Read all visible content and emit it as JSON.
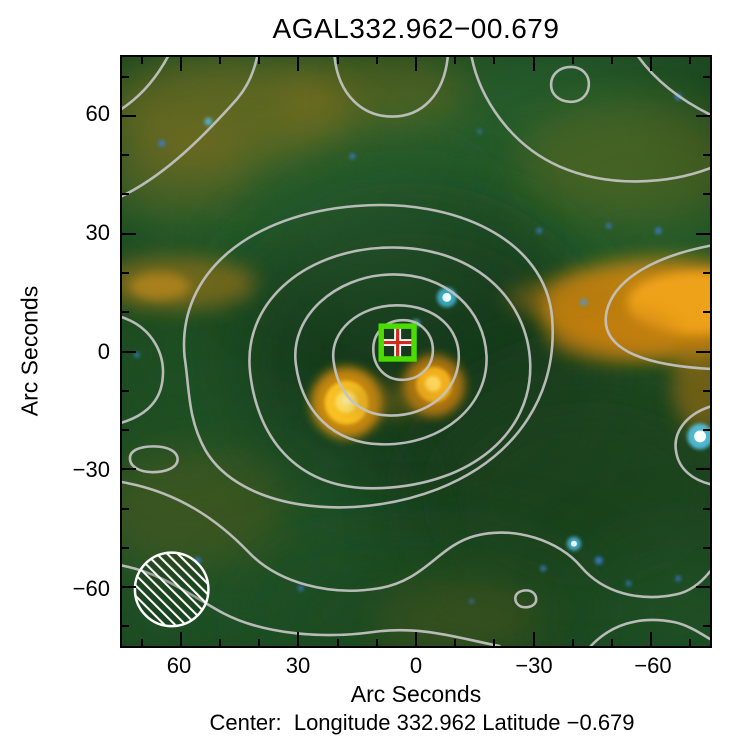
{
  "title": "AGAL332.962−00.679",
  "caption": "Center:  Longitude 332.962 Latitude −0.679",
  "axes": {
    "span_arcsec": 75,
    "x": {
      "label": "Arc Seconds",
      "ticks": [
        "60",
        "30",
        "0",
        "−30",
        "−60"
      ],
      "major_values": [
        60,
        30,
        0,
        -30,
        -60
      ],
      "minor_step": 10
    },
    "y": {
      "label": "Arc Seconds",
      "ticks": [
        "60",
        "30",
        "0",
        "−30",
        "−60"
      ],
      "major_values": [
        60,
        30,
        0,
        -30,
        -60
      ],
      "minor_step": 10
    }
  },
  "colors": {
    "contour": "#c4c4c4",
    "marker_square": "#4cdd00",
    "marker_cross": "#d42a1e",
    "marker_cross_outline": "#ffffff",
    "beam_outline": "#ffffff",
    "frame": "#000000",
    "sky_base_green": "#1c4720",
    "emission_orange": "#e5940f"
  },
  "chart_data": {
    "type": "heatmap",
    "subtype": "rgb-composite-sky-image-with-contours",
    "title": "AGAL332.962−00.679",
    "xlabel": "Arc Seconds",
    "ylabel": "Arc Seconds",
    "xlim": [
      75,
      -75
    ],
    "ylim": [
      -75,
      75
    ],
    "x_tick_values": [
      60,
      30,
      0,
      -30,
      -60
    ],
    "y_tick_values": [
      -60,
      -30,
      0,
      30,
      60
    ],
    "grid": false,
    "center": {
      "longitude": 332.962,
      "latitude": -0.679
    },
    "contours": {
      "color": "#c4c4c4",
      "nested_levels_at_center": 5,
      "center_arcsec": [
        5,
        2
      ],
      "style": "light-gray-irregular"
    },
    "marker": {
      "arcsec_x": 5,
      "arcsec_y": 2,
      "shape": "green-square-with-red-cross"
    },
    "beam": {
      "position": "bottom-left",
      "diameter_arcsec": 19,
      "style": "white-hatched-circle"
    },
    "bright_features": [
      {
        "name": "central-yellow-blob",
        "arcsec_x": 18,
        "arcsec_y": -13,
        "color": "yellow"
      },
      {
        "name": "secondary-orange-blob",
        "arcsec_x": -4,
        "arcsec_y": -8,
        "color": "orange"
      },
      {
        "name": "right-edge-orange-ridge",
        "arcsec_x": -62,
        "arcsec_y": 9,
        "color": "orange"
      },
      {
        "name": "left-orange-streak",
        "arcsec_x": 61,
        "arcsec_y": 17,
        "color": "orange"
      },
      {
        "name": "cyan-star-near-center",
        "arcsec_x": -8,
        "arcsec_y": 14,
        "color": "cyan-white"
      },
      {
        "name": "right-edge-bright-star",
        "arcsec_x": -72,
        "arcsec_y": -22,
        "color": "white-cyan"
      },
      {
        "name": "lower-right-cyan-star",
        "arcsec_x": -40,
        "arcsec_y": -49,
        "color": "cyan"
      }
    ]
  }
}
